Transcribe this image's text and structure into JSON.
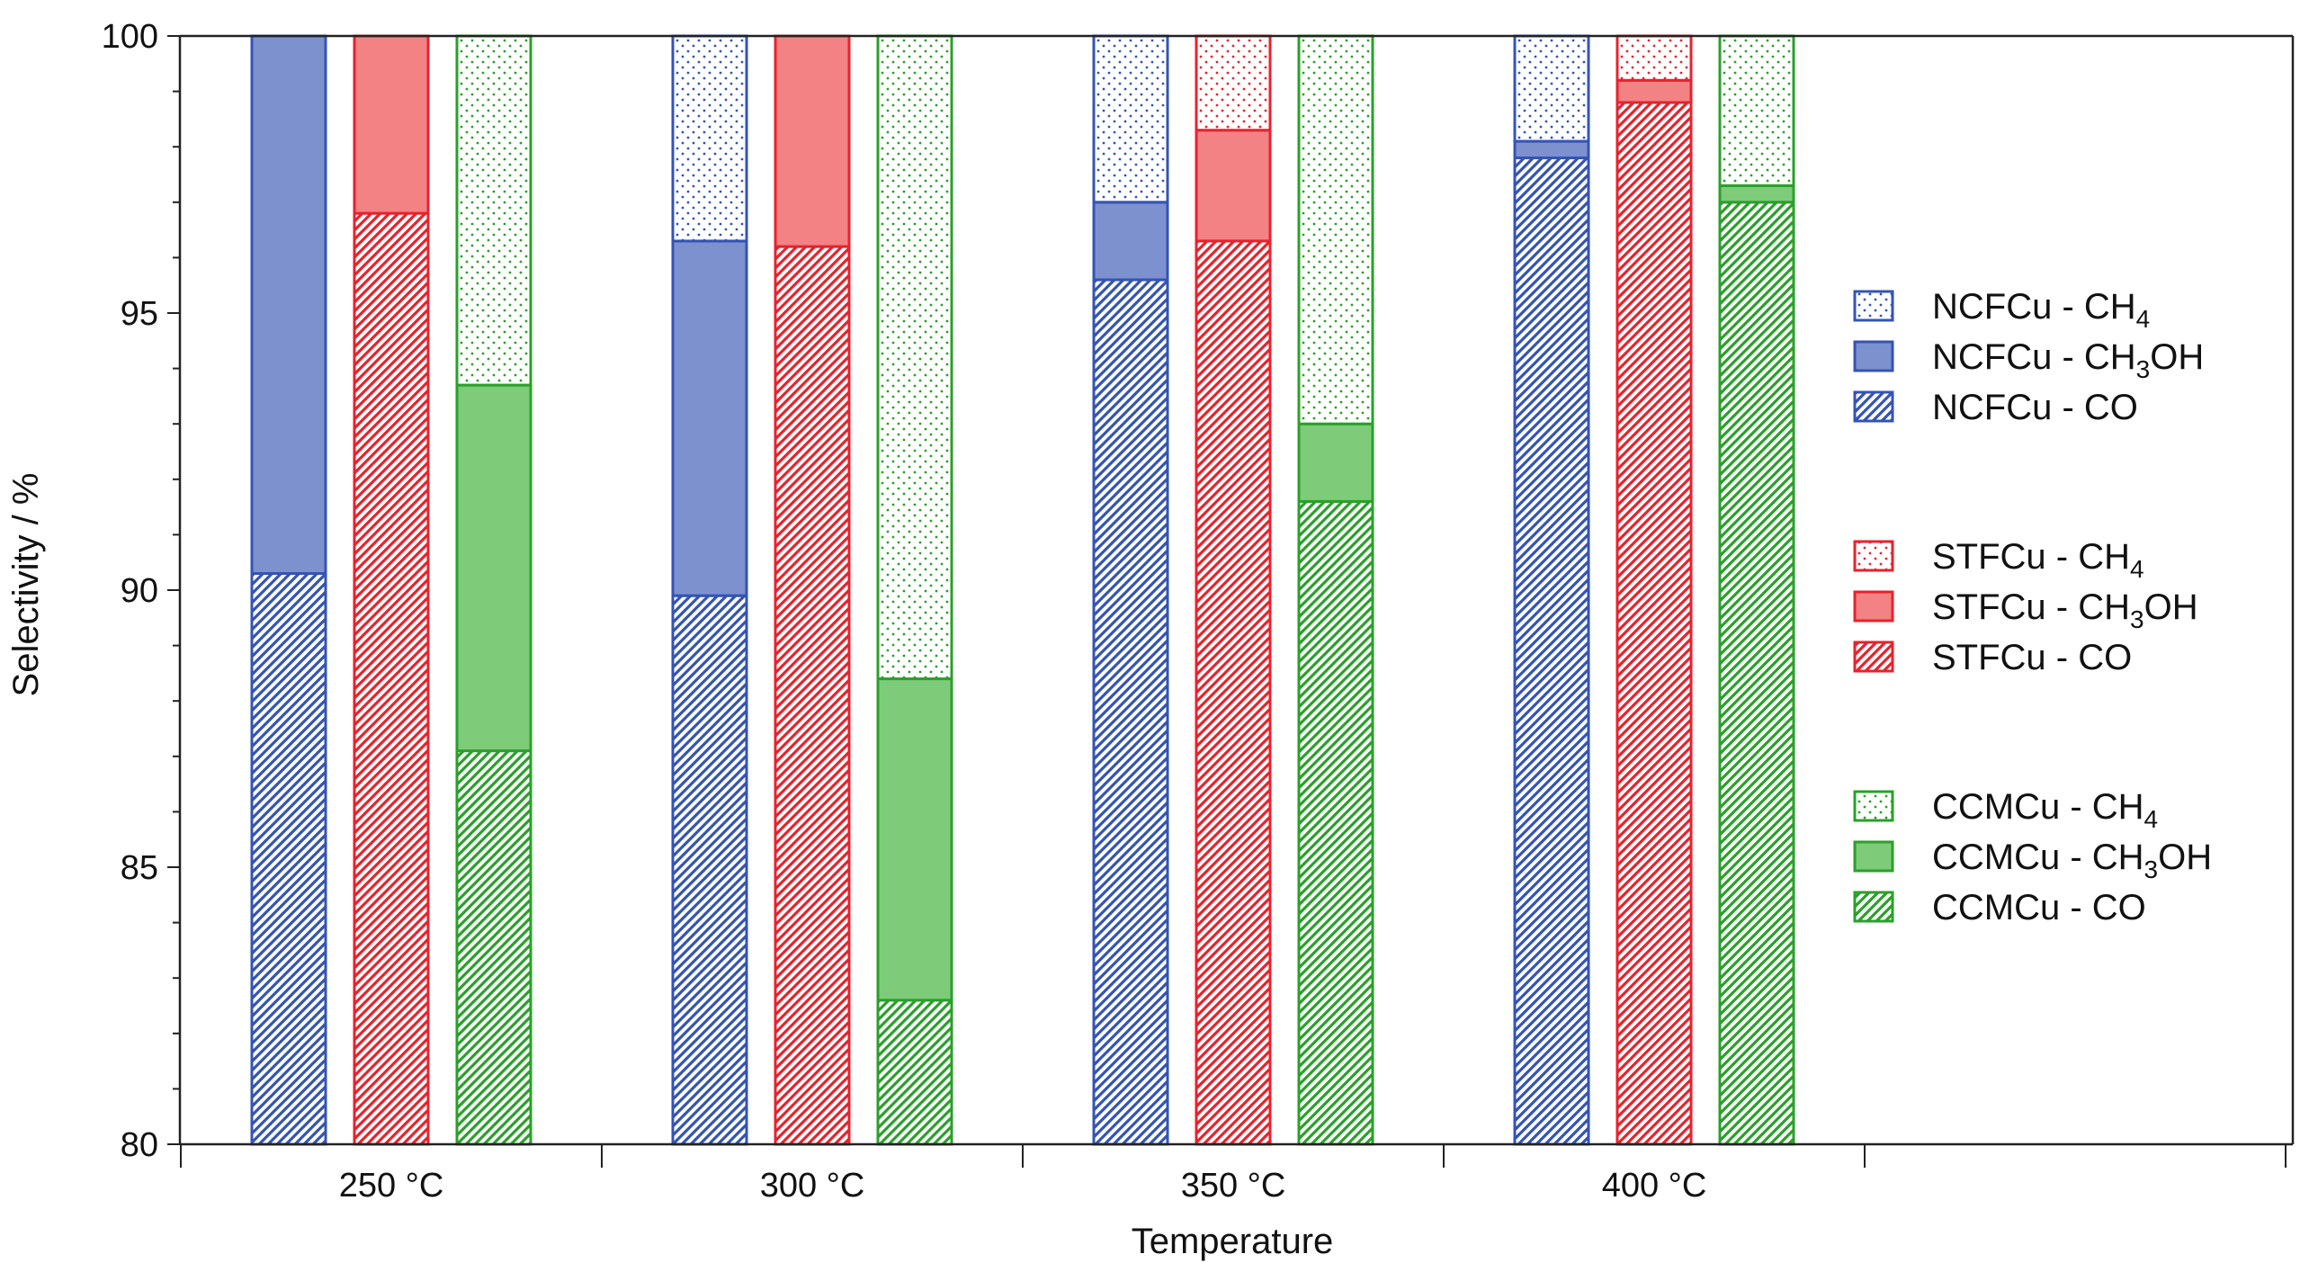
{
  "colors": {
    "NCFCu": "#3454b4",
    "NCFCu_fill": "#7c91ce",
    "STFCu": "#e8222c",
    "STFCu_fill": "#f28284",
    "CCMCu": "#2aa02a",
    "CCMCu_fill": "#7ecb7a",
    "axis": "#222222"
  },
  "chart_data": {
    "type": "bar",
    "subtype": "stacked",
    "xlabel": "Temperature",
    "ylabel": "Selectivity / %",
    "ylim": [
      80,
      100
    ],
    "yticks": [
      "80",
      "85",
      "90",
      "95",
      "100"
    ],
    "categories": [
      "250 °C",
      "300 °C",
      "350 °C",
      "400 °C"
    ],
    "catalysts": [
      "NCFCu",
      "STFCu",
      "CCMCu"
    ],
    "components": [
      "CO",
      "CH3OH",
      "CH4"
    ],
    "series": [
      {
        "name": "NCFCu",
        "CO": [
          90.3,
          89.9,
          95.6,
          97.8
        ],
        "CH3OH": [
          9.7,
          6.4,
          1.4,
          0.3
        ],
        "CH4": [
          0.0,
          3.7,
          3.0,
          1.9
        ]
      },
      {
        "name": "STFCu",
        "CO": [
          96.8,
          96.2,
          96.3,
          98.8
        ],
        "CH3OH": [
          3.2,
          3.8,
          2.0,
          0.4
        ],
        "CH4": [
          0.0,
          0.0,
          1.7,
          0.8
        ]
      },
      {
        "name": "CCMCu",
        "CO": [
          87.1,
          82.6,
          91.6,
          97.0
        ],
        "CH3OH": [
          6.6,
          5.8,
          1.4,
          0.3
        ],
        "CH4": [
          6.3,
          11.6,
          7.0,
          2.7
        ]
      }
    ],
    "legend": {
      "position": "right",
      "groups": [
        [
          {
            "catalyst": "NCFCu",
            "pattern": "dots",
            "pre": "NCFCu - CH",
            "sub": "4",
            "post": ""
          },
          {
            "catalyst": "NCFCu",
            "pattern": "solid",
            "pre": "NCFCu - CH",
            "sub": "3",
            "post": "OH"
          },
          {
            "catalyst": "NCFCu",
            "pattern": "hatch",
            "pre": "NCFCu - CO",
            "sub": "",
            "post": ""
          }
        ],
        [
          {
            "catalyst": "STFCu",
            "pattern": "dots",
            "pre": "STFCu - CH",
            "sub": "4",
            "post": ""
          },
          {
            "catalyst": "STFCu",
            "pattern": "solid",
            "pre": "STFCu - CH",
            "sub": "3",
            "post": "OH"
          },
          {
            "catalyst": "STFCu",
            "pattern": "hatch",
            "pre": "STFCu - CO",
            "sub": "",
            "post": ""
          }
        ],
        [
          {
            "catalyst": "CCMCu",
            "pattern": "dots",
            "pre": "CCMCu - CH",
            "sub": "4",
            "post": ""
          },
          {
            "catalyst": "CCMCu",
            "pattern": "solid",
            "pre": "CCMCu - CH",
            "sub": "3",
            "post": "OH"
          },
          {
            "catalyst": "CCMCu",
            "pattern": "hatch",
            "pre": "CCMCu - CO",
            "sub": "",
            "post": ""
          }
        ]
      ]
    }
  }
}
